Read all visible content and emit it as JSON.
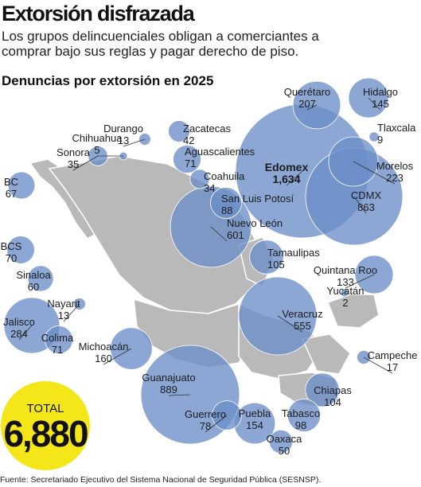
{
  "header": {
    "title": "Extorsión disfrazada",
    "subtitle": "Los grupos delincuenciales obligan a comerciantes a comprar bajo sus reglas y pagar derecho de piso."
  },
  "colors": {
    "bubble": "#6c8ec8",
    "map": "#b9b9b9",
    "total_badge": "#f5e61a",
    "leader": "#333333"
  },
  "total": {
    "label": "TOTAL",
    "value": "6,880"
  },
  "source": "Fuente: Secretariado Ejecutivo del Sistema Nacional de Seguridad Pública (SESNSP).",
  "chart_data": {
    "type": "bubble-map",
    "title": "Denuncias por extorsión en 2025",
    "series": [
      {
        "state": "Querétaro",
        "value": 207
      },
      {
        "state": "Hidalgo",
        "value": 145
      },
      {
        "state": "Tlaxcala",
        "value": 9
      },
      {
        "state": "Durango",
        "value": 13
      },
      {
        "state": "Zacatecas",
        "value": 42
      },
      {
        "state": "Chihuahua",
        "value": 5
      },
      {
        "state": "Sonora",
        "value": 35
      },
      {
        "state": "Aguascalientes",
        "value": 71
      },
      {
        "state": "Edomex",
        "value": 1634,
        "display": "1,634"
      },
      {
        "state": "Morelos",
        "value": 223
      },
      {
        "state": "Coahuila",
        "value": 34
      },
      {
        "state": "BC",
        "value": 67
      },
      {
        "state": "San Luis Potosí",
        "value": 88
      },
      {
        "state": "CDMX",
        "value": 863
      },
      {
        "state": "Nuevo León",
        "value": 601
      },
      {
        "state": "BCS",
        "value": 70
      },
      {
        "state": "Tamaulipas",
        "value": 105
      },
      {
        "state": "Quintana Roo",
        "value": 133
      },
      {
        "state": "Sinaloa",
        "value": 60
      },
      {
        "state": "Yucatán",
        "value": 2
      },
      {
        "state": "Nayarit",
        "value": 13
      },
      {
        "state": "Veracruz",
        "value": 555
      },
      {
        "state": "Jalisco",
        "value": 284
      },
      {
        "state": "Colima",
        "value": 71
      },
      {
        "state": "Michoacán",
        "value": 160
      },
      {
        "state": "Campeche",
        "value": 17
      },
      {
        "state": "Guanajuato",
        "value": 889
      },
      {
        "state": "Chiapas",
        "value": 104
      },
      {
        "state": "Guerrero",
        "value": 78
      },
      {
        "state": "Puebla",
        "value": 154
      },
      {
        "state": "Tabasco",
        "value": 98
      },
      {
        "state": "Oaxaca",
        "value": 50
      }
    ]
  }
}
